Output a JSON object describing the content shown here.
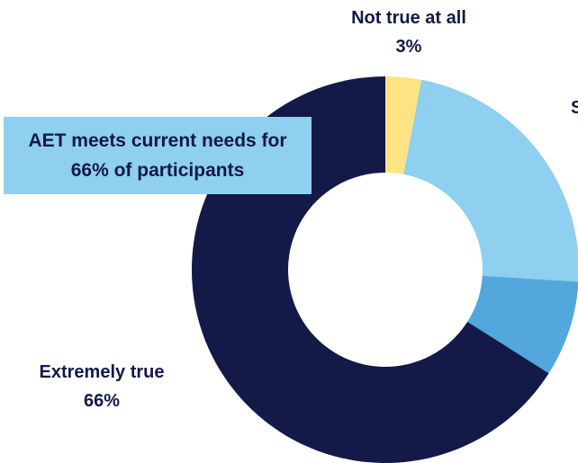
{
  "chart_data": {
    "type": "pie",
    "donut": true,
    "slices": [
      {
        "label": "Not true at all",
        "value": 3,
        "value_label": "3%",
        "color": "#fde383"
      },
      {
        "label": "S",
        "value": 23,
        "value_label": "",
        "color": "#8fcfef"
      },
      {
        "label": "",
        "value": 8,
        "value_label": "",
        "color": "#52a7dc"
      },
      {
        "label": "Extremely true",
        "value": 66,
        "value_label": "66%",
        "color": "#131a47"
      }
    ],
    "callout": {
      "line1": "AET meets current needs for",
      "line2": "66% of participants",
      "color": "#8fcfef"
    },
    "truncated_label": "S"
  }
}
